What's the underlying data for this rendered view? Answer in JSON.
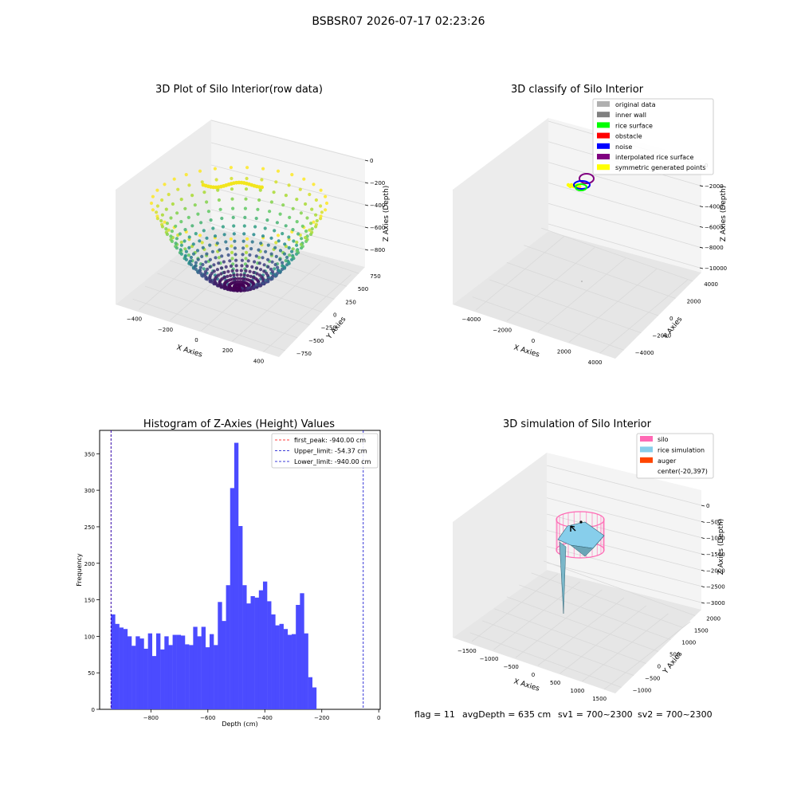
{
  "figure": {
    "suptitle": "BSBSR07 2026-07-17 02:23:26",
    "footer": {
      "flag": "flag = 11",
      "avg_depth": "avgDepth = 635 cm",
      "sv1": "sv1 = 700~2300",
      "sv2": "sv2 = 700~2300"
    }
  },
  "colors": {
    "hist_bar": "#4b4bff",
    "first_peak": "#ff0000",
    "limit_lines": "#0000cc",
    "silo": "#ff69b4",
    "rice_simulation": "#87ceeb",
    "auger": "#ff4500",
    "pane": "#f2f2f2",
    "grid": "#d9d9d9"
  },
  "chart_data": [
    {
      "type": "scatter",
      "title": "3D Plot of Silo Interior(row data)",
      "projection": "3d",
      "xlabel": "X Axies",
      "ylabel": "Y Axies",
      "zlabel": "Z Axies (Depth)",
      "x_ticks": [
        "−400",
        "−200",
        "0",
        "200",
        "400"
      ],
      "y_ticks": [
        "−750",
        "−500",
        "−250",
        "0",
        "250",
        "500",
        "750"
      ],
      "z_ticks": [
        "0",
        "−200",
        "−400",
        "−600",
        "−800"
      ],
      "xlim": [
        -500,
        500
      ],
      "ylim": [
        -800,
        800
      ],
      "zlim": [
        -950,
        0
      ],
      "colormap": "viridis",
      "description_points": "bowl-shaped point cloud of scan rings, deepest near z = −940"
    },
    {
      "type": "scatter",
      "title": "3D classify of Silo Interior",
      "projection": "3d",
      "xlabel": "X Axies",
      "ylabel": "Y Axies",
      "zlabel": "Z Axies (Depth)",
      "x_ticks": [
        "−4000",
        "−2000",
        "0",
        "2000",
        "4000"
      ],
      "y_ticks": [
        "−4000",
        "−2000",
        "0",
        "2000",
        "4000"
      ],
      "z_ticks": [
        "0",
        "−2000",
        "−4000",
        "−6000",
        "−8000",
        "−10000"
      ],
      "xlim": [
        -5000,
        5000
      ],
      "ylim": [
        -5000,
        5000
      ],
      "zlim": [
        -10000,
        0
      ],
      "legend": [
        {
          "label": "original data",
          "color": "#b0b0b0"
        },
        {
          "label": "inner wall",
          "color": "#808080"
        },
        {
          "label": "rice surface",
          "color": "#00ff00"
        },
        {
          "label": "obstacle",
          "color": "#ff0000"
        },
        {
          "label": "noise",
          "color": "#0000ff"
        },
        {
          "label": "interpolated rice surface",
          "color": "#800080"
        },
        {
          "label": "symmetric generated points",
          "color": "#ffff00"
        }
      ]
    },
    {
      "type": "bar",
      "title": "Histogram of Z-Axies (Height) Values",
      "xlabel": "Depth (cm)",
      "ylabel": "Frequency",
      "xlim": [
        -980,
        5
      ],
      "ylim": [
        0,
        382
      ],
      "x_ticks": [
        -800,
        -600,
        -400,
        -200,
        0
      ],
      "x_tick_labels": [
        "−800",
        "−600",
        "−400",
        "−200",
        "0"
      ],
      "y_ticks": [
        0,
        50,
        100,
        150,
        200,
        250,
        300,
        350
      ],
      "bin_start": -940,
      "bin_width": 14.42,
      "values": [
        130,
        117,
        112,
        110,
        100,
        87,
        100,
        97,
        83,
        104,
        73,
        104,
        82,
        100,
        88,
        102,
        102,
        101,
        89,
        88,
        113,
        100,
        113,
        85,
        103,
        88,
        147,
        121,
        170,
        303,
        365,
        251,
        170,
        145,
        155,
        153,
        163,
        175,
        148,
        130,
        115,
        117,
        110,
        102,
        103,
        143,
        159,
        104,
        44,
        30
      ],
      "vlines": [
        {
          "label": "first_peak: -940.00 cm",
          "x": -940,
          "color": "#ff0000"
        },
        {
          "label": "Upper_limit: -54.37 cm",
          "x": -54.37,
          "color": "#0000cc"
        },
        {
          "label": "Lower_limit: -940.00 cm",
          "x": -940,
          "color": "#0000cc"
        }
      ]
    },
    {
      "type": "surface",
      "title": "3D simulation of Silo Interior",
      "projection": "3d",
      "xlabel": "X Axies",
      "ylabel": "Y Axies",
      "zlabel": "Z Axies (Depth)",
      "x_ticks": [
        "−1500",
        "−1000",
        "−500",
        "0",
        "500",
        "1000",
        "1500"
      ],
      "y_ticks": [
        "−1000",
        "−500",
        "0",
        "500",
        "1000",
        "1500",
        "2000"
      ],
      "z_ticks": [
        "0",
        "−500",
        "−1000",
        "−1500",
        "−2000",
        "−2500",
        "−3000"
      ],
      "xlim": [
        -1700,
        1700
      ],
      "ylim": [
        -1300,
        2200
      ],
      "zlim": [
        -3200,
        300
      ],
      "legend": [
        {
          "label": "silo",
          "color": "#ff69b4"
        },
        {
          "label": "rice simulation",
          "color": "#87ceeb"
        },
        {
          "label": "auger",
          "color": "#ff4500"
        },
        {
          "label": "center(-20,397)",
          "color": ""
        }
      ]
    }
  ]
}
